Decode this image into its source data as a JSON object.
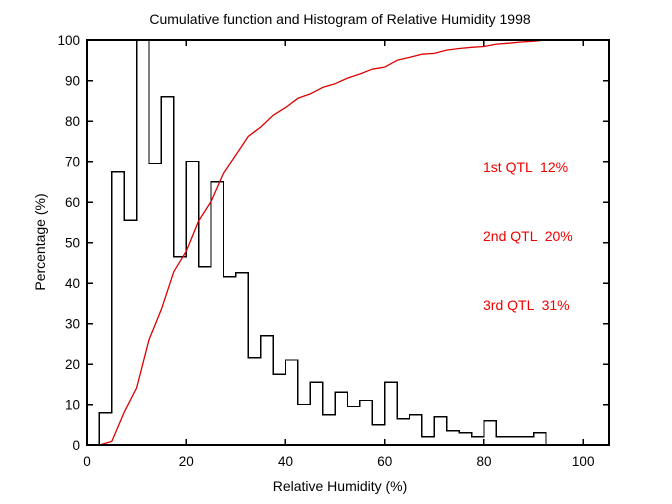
{
  "chart_data": {
    "type": "bar",
    "subtype": "step-histogram with cumulative line (MATLAB-style figure)",
    "title": "Cumulative function and Histogram of Relative Humidity 1998",
    "xlabel": "Relative Humidity (%)",
    "ylabel": "Percentage (%)",
    "xlim": [
      0,
      105.2
    ],
    "ylim": [
      0,
      100
    ],
    "x_ticks": [
      0,
      20,
      40,
      60,
      80,
      100
    ],
    "y_ticks": [
      0,
      10,
      20,
      30,
      40,
      50,
      60,
      70,
      80,
      90,
      100
    ],
    "grid": false,
    "frame_color": "#000000",
    "histogram": {
      "style": "stairs-outline",
      "color": "#000000",
      "bin_start": 2.5,
      "bin_width": 2.5,
      "heights": [
        8,
        67.5,
        55.5,
        110,
        69.5,
        86,
        46.5,
        70,
        44,
        65,
        41.5,
        42.5,
        21.5,
        27,
        17.5,
        21,
        10,
        15.5,
        7.5,
        13,
        9.5,
        11,
        5,
        15.5,
        6.5,
        7.5,
        2,
        7,
        3.5,
        3,
        2,
        6,
        2,
        2,
        2,
        3
      ],
      "note": "bin 10-12.5 exceeds the axis and is clipped at 100"
    },
    "cumulative": {
      "style": "line",
      "color": "#dd0000",
      "x": [
        0,
        2.5,
        5,
        7.5,
        10,
        12.5,
        15,
        17.5,
        20,
        22.5,
        25,
        27.5,
        30,
        32.5,
        35,
        37.5,
        40,
        42.5,
        45,
        47.5,
        50,
        52.5,
        55,
        57.5,
        60,
        62.5,
        65,
        67.5,
        70,
        72.5,
        75,
        77.5,
        80,
        82.5,
        85,
        87.5,
        90,
        92.5
      ],
      "y": [
        0,
        0,
        0.9,
        8.1,
        14.1,
        26.0,
        33.5,
        42.8,
        47.8,
        55.3,
        60.1,
        67.1,
        71.6,
        76.2,
        78.5,
        81.4,
        83.3,
        85.6,
        86.7,
        88.3,
        89.2,
        90.6,
        91.6,
        92.8,
        93.3,
        95.0,
        95.7,
        96.5,
        96.7,
        97.5,
        97.9,
        98.2,
        98.4,
        99.0,
        99.2,
        99.5,
        99.7,
        100
      ]
    },
    "annotation": {
      "color": "#f20000",
      "lines": [
        "1st QTL  12%",
        "2nd QTL  20%",
        "3rd QTL  31%"
      ]
    }
  }
}
